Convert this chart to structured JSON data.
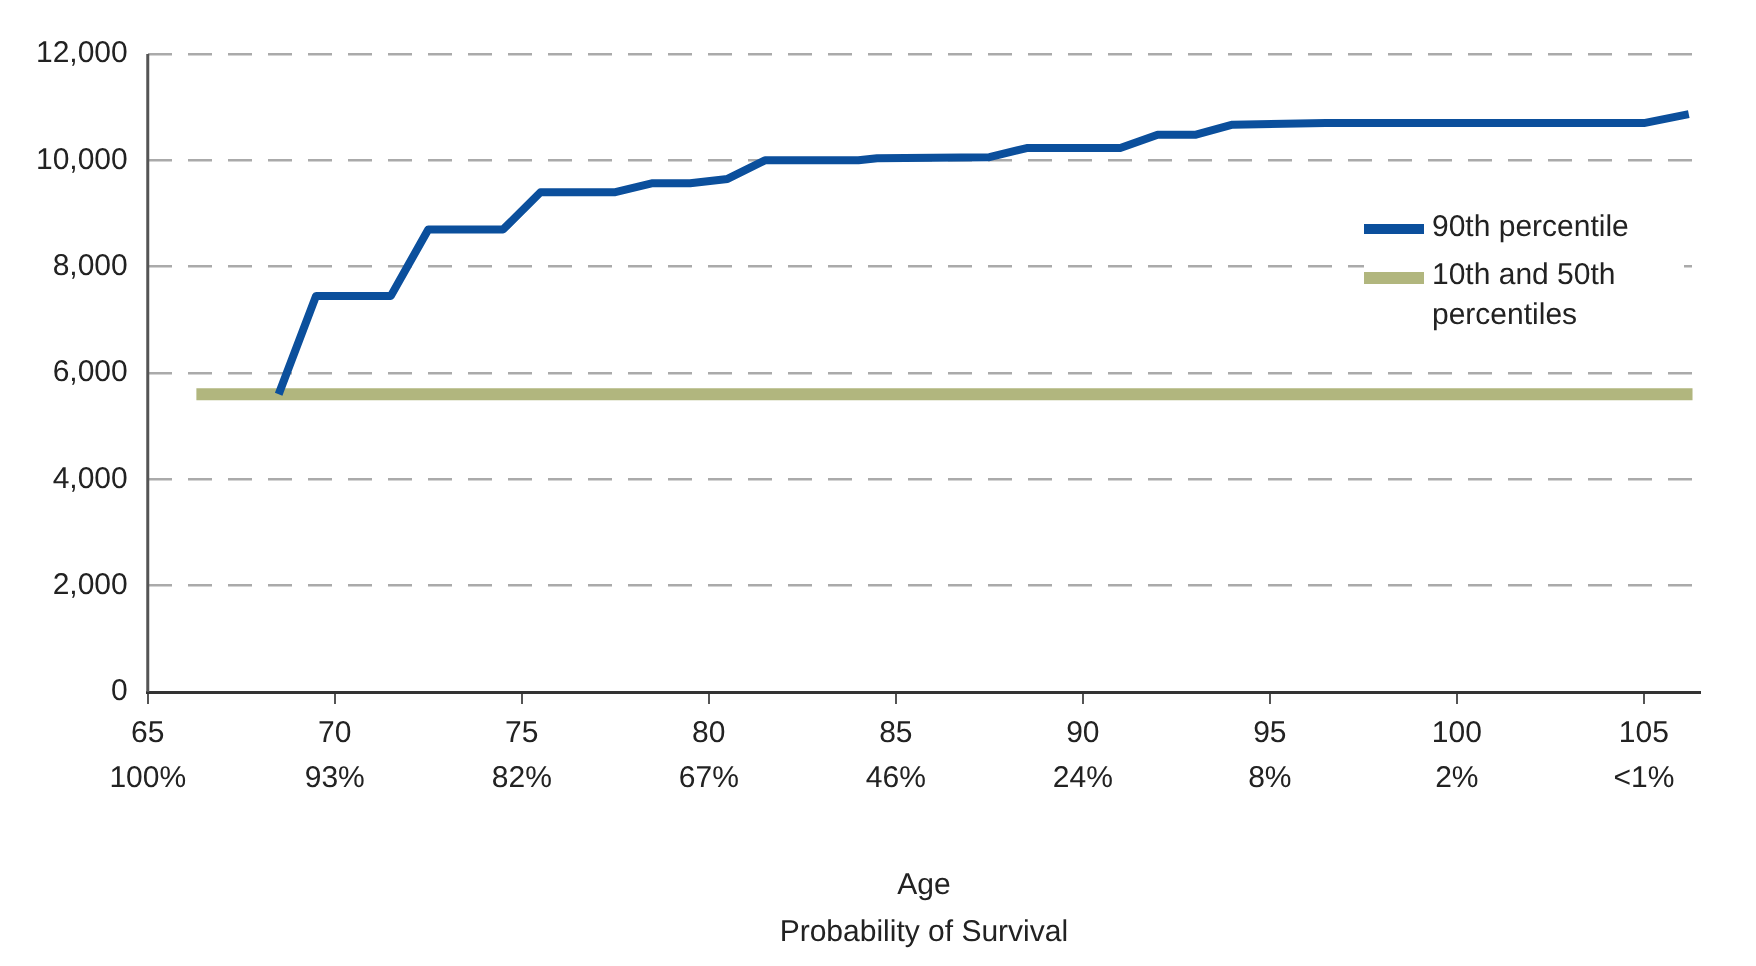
{
  "chart_data": {
    "type": "line",
    "xlabel": "Age",
    "annotations": [
      "100%",
      "93%",
      "82%",
      "67%",
      "46%",
      "24%",
      "8%",
      "2%",
      "<1%",
      "Probability of Survival"
    ],
    "xlim": [
      65,
      106.5
    ],
    "xticks": [
      65,
      70,
      75,
      80,
      85,
      90,
      95,
      100,
      105
    ],
    "ylim": [
      0,
      12000
    ],
    "yticks": [
      0,
      {
        "value": 2000,
        "label": "2,000"
      },
      {
        "value": 4000,
        "label": "4,000"
      },
      {
        "value": 6000,
        "label": "6,000"
      },
      {
        "value": 8000,
        "label": "8,000"
      },
      {
        "value": 10000,
        "label": "10,000"
      },
      {
        "value": 12000,
        "label": "12,000"
      }
    ],
    "grid": "y",
    "legend": "right",
    "marker": "none",
    "line_style": "solid",
    "series": [
      {
        "name": "90th percentile",
        "color": "#0b4f9c",
        "x": [
          68.5,
          69.5,
          71.5,
          72.5,
          74.5,
          75.5,
          77.5,
          78.5,
          79.5,
          80.5,
          81.5,
          84,
          84.5,
          86,
          87.5,
          88.5,
          91,
          92,
          93,
          94,
          96.5,
          105,
          106.2
        ],
        "values": [
          5600,
          7450,
          7450,
          8700,
          8700,
          9400,
          9400,
          9570,
          9570,
          9650,
          10000,
          10000,
          10040,
          10050,
          10060,
          10230,
          10230,
          10480,
          10480,
          10670,
          10700,
          10700,
          10870
        ]
      },
      {
        "name": "10th and 50th percentiles",
        "color": "#b1b67e",
        "x": [
          66.3,
          106.3
        ],
        "values": [
          5600,
          5600
        ]
      }
    ]
  }
}
